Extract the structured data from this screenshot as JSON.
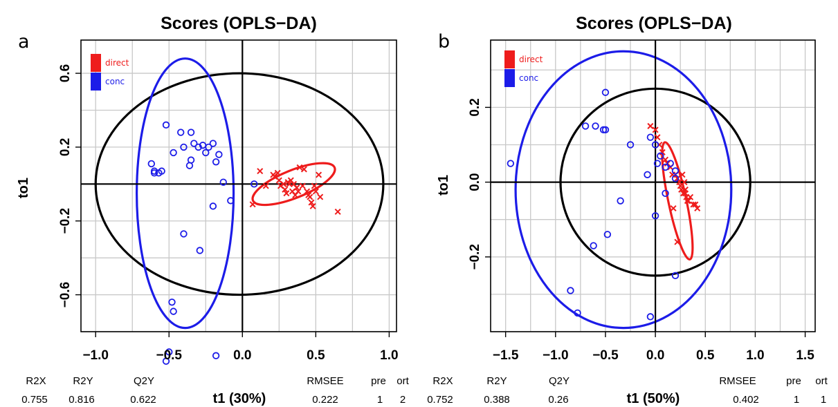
{
  "chart_data": [
    {
      "type": "scatter",
      "panel_label": "a",
      "title": "Scores (OPLS−DA)",
      "xlabel": "t1 (30%)",
      "ylabel": "to1",
      "xlim": [
        -1.1,
        1.05
      ],
      "ylim": [
        -0.8,
        0.78
      ],
      "xticks": [
        -1.0,
        -0.5,
        0.0,
        0.5,
        1.0
      ],
      "xtick_labels": [
        "−1.0",
        "−0.5",
        "0.0",
        "0.5",
        "1.0"
      ],
      "yticks": [
        0.6,
        0.2,
        -0.2,
        -0.6
      ],
      "ytick_labels": [
        "0.6",
        "0.2",
        "−0.2",
        "−0.6"
      ],
      "grid": true,
      "legend_position": "top-left",
      "legend": [
        {
          "label": "direct",
          "color": "#ee1c1c"
        },
        {
          "label": "conc",
          "color": "#1c1ce8"
        }
      ],
      "series": [
        {
          "name": "direct",
          "marker": "x",
          "color": "#ee1c1c",
          "x": [
            0.07,
            0.12,
            0.16,
            0.21,
            0.22,
            0.24,
            0.25,
            0.26,
            0.28,
            0.29,
            0.3,
            0.31,
            0.32,
            0.33,
            0.34,
            0.35,
            0.36,
            0.37,
            0.38,
            0.39,
            0.41,
            0.42,
            0.44,
            0.45,
            0.46,
            0.47,
            0.48,
            0.49,
            0.5,
            0.52,
            0.53,
            0.65
          ],
          "y": [
            -0.11,
            0.07,
            -0.01,
            0.05,
            0.04,
            0.06,
            0.02,
            -0.01,
            0.0,
            -0.03,
            -0.05,
            0.01,
            0.0,
            0.02,
            -0.04,
            0.0,
            -0.06,
            -0.02,
            -0.04,
            0.09,
            -0.01,
            0.08,
            -0.04,
            -0.06,
            -0.07,
            -0.1,
            -0.12,
            -0.01,
            -0.04,
            0.05,
            -0.07,
            -0.15
          ]
        },
        {
          "name": "conc",
          "marker": "o",
          "color": "#1c1ce8",
          "x": [
            -0.52,
            -0.47,
            -0.42,
            -0.35,
            -0.4,
            -0.33,
            -0.3,
            -0.27,
            -0.23,
            -0.2,
            -0.16,
            -0.25,
            -0.18,
            -0.36,
            -0.35,
            -0.6,
            -0.62,
            -0.57,
            -0.6,
            -0.55,
            -0.13,
            -0.08,
            0.08,
            -0.2,
            -0.4,
            -0.29,
            -0.48,
            -0.47,
            -0.5,
            -0.52,
            -0.18
          ],
          "y": [
            0.32,
            0.17,
            0.28,
            0.28,
            0.2,
            0.22,
            0.2,
            0.21,
            0.2,
            0.22,
            0.16,
            0.17,
            0.12,
            0.1,
            0.13,
            0.07,
            0.11,
            0.06,
            0.06,
            0.07,
            0.01,
            -0.09,
            0.0,
            -0.12,
            -0.27,
            -0.36,
            -0.64,
            -0.69,
            -0.91,
            -0.96,
            -0.93
          ]
        }
      ],
      "stats": {
        "headers": [
          "R2X",
          "R2Y",
          "Q2Y",
          "RMSEE",
          "pre",
          "ort"
        ],
        "values": [
          "0.755",
          "0.816",
          "0.622",
          "0.222",
          "1",
          "2"
        ]
      }
    },
    {
      "type": "scatter",
      "panel_label": "b",
      "title": "Scores (OPLS−DA)",
      "xlabel": "t1 (50%)",
      "ylabel": "to1",
      "xlim": [
        -1.65,
        1.6
      ],
      "ylim": [
        -0.4,
        0.38
      ],
      "xticks": [
        -1.5,
        -1.0,
        -0.5,
        0.0,
        0.5,
        1.0,
        1.5
      ],
      "xtick_labels": [
        "−1.5",
        "−1.0",
        "−0.5",
        "0.0",
        "0.5",
        "1.0",
        "1.5"
      ],
      "yticks": [
        0.2,
        0.0,
        -0.2
      ],
      "ytick_labels": [
        "0.2",
        "0.0",
        "−0.2"
      ],
      "grid": true,
      "legend_position": "top-left",
      "legend": [
        {
          "label": "direct",
          "color": "#ee1c1c"
        },
        {
          "label": "conc",
          "color": "#1c1ce8"
        }
      ],
      "series": [
        {
          "name": "direct",
          "marker": "x",
          "color": "#ee1c1c",
          "x": [
            -0.05,
            0.0,
            0.02,
            0.04,
            0.07,
            0.1,
            0.12,
            0.15,
            0.17,
            0.2,
            0.22,
            0.24,
            0.25,
            0.26,
            0.27,
            0.28,
            0.29,
            0.3,
            0.31,
            0.32,
            0.33,
            0.35,
            0.38,
            0.4,
            0.42,
            0.18,
            0.3,
            0.22
          ],
          "y": [
            0.15,
            0.14,
            0.12,
            0.1,
            0.08,
            0.06,
            0.05,
            0.04,
            0.02,
            0.02,
            0.01,
            0.0,
            -0.01,
            -0.02,
            0.02,
            -0.03,
            0.0,
            -0.03,
            -0.04,
            -0.05,
            -0.05,
            -0.04,
            -0.06,
            -0.06,
            -0.07,
            -0.07,
            -0.02,
            -0.16
          ]
        },
        {
          "name": "conc",
          "marker": "o",
          "color": "#1c1ce8",
          "x": [
            -0.5,
            -0.7,
            -0.6,
            -0.5,
            -0.52,
            -0.25,
            -0.05,
            0.0,
            0.05,
            0.02,
            0.1,
            0.15,
            0.2,
            0.2,
            0.1,
            -0.08,
            -1.45,
            -0.35,
            0.0,
            -0.62,
            -0.48,
            -0.85,
            -0.78,
            0.2,
            -0.05
          ],
          "y": [
            0.24,
            0.15,
            0.15,
            0.14,
            0.14,
            0.1,
            0.12,
            0.1,
            0.07,
            0.05,
            0.04,
            0.05,
            0.01,
            0.03,
            -0.03,
            0.02,
            0.05,
            -0.05,
            -0.09,
            -0.17,
            -0.14,
            -0.29,
            -0.35,
            -0.25,
            -0.36
          ]
        }
      ],
      "stats": {
        "headers": [
          "R2X",
          "R2Y",
          "Q2Y",
          "RMSEE",
          "pre",
          "ort"
        ],
        "values": [
          "0.752",
          "0.388",
          "0.26",
          "0.402",
          "1",
          "1"
        ]
      }
    }
  ]
}
